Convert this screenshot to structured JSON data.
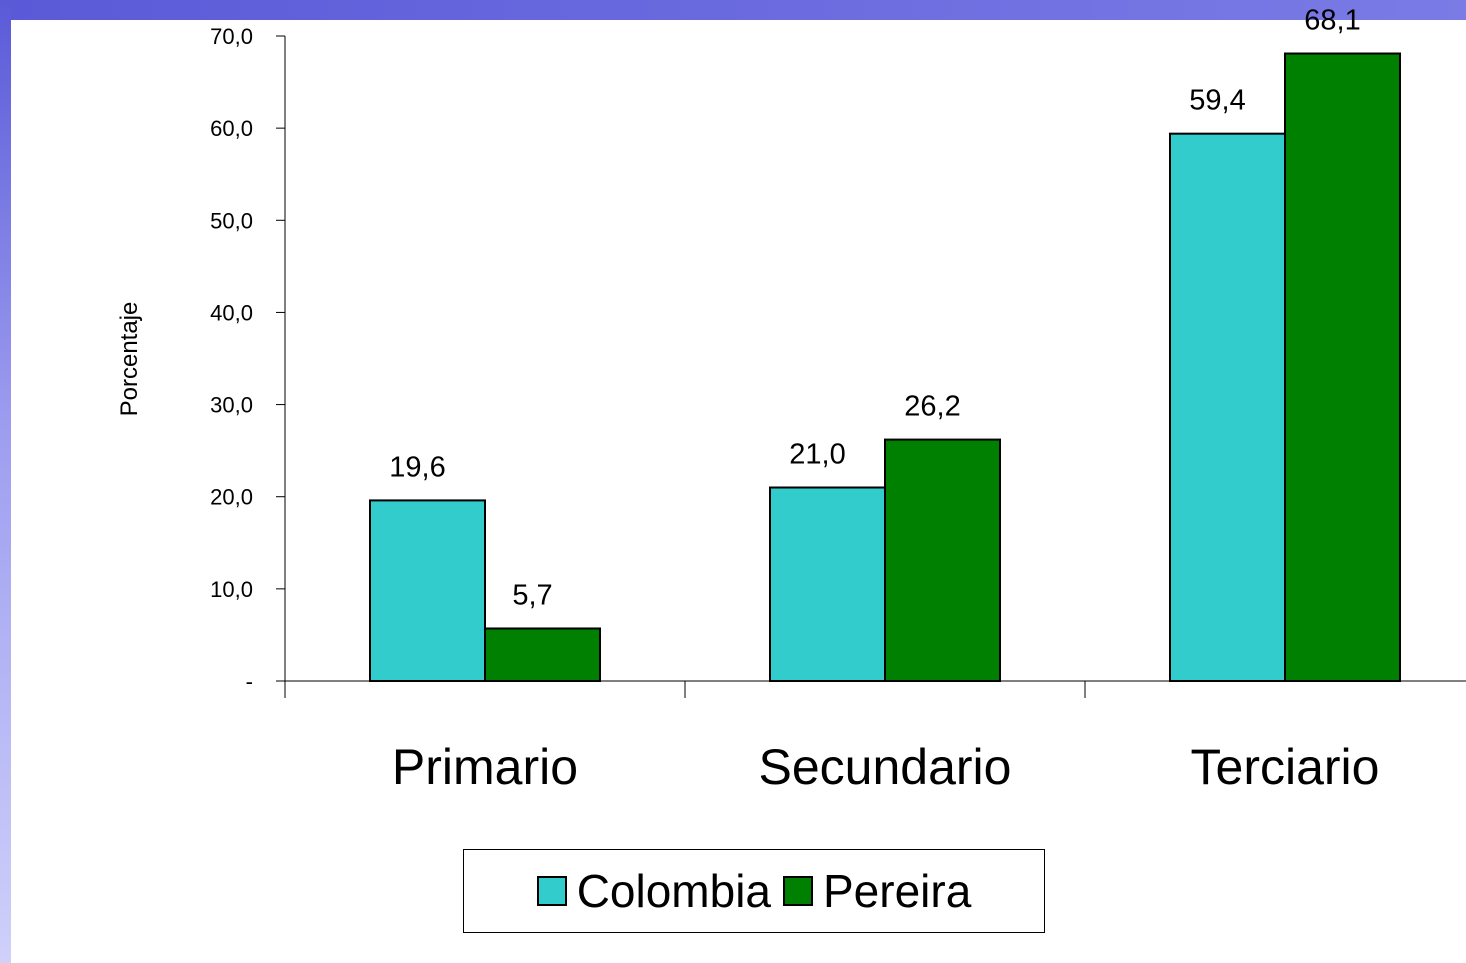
{
  "colors": {
    "colombia": "#33cccc",
    "pereira": "#008000"
  },
  "chart_data": {
    "type": "bar",
    "categories": [
      "Primario",
      "Secundario",
      "Terciario"
    ],
    "series": [
      {
        "name": "Colombia",
        "values": [
          19.6,
          21.0,
          59.4
        ],
        "labels": [
          "19,6",
          "21,0",
          "59,4"
        ]
      },
      {
        "name": "Pereira",
        "values": [
          5.7,
          26.2,
          68.1
        ],
        "labels": [
          "5,7",
          "26,2",
          "68,1"
        ]
      }
    ],
    "title": "",
    "xlabel": "",
    "ylabel": "Porcentaje",
    "ylim": [
      0,
      70
    ],
    "yticks": [
      {
        "value": 0,
        "label": "-"
      },
      {
        "value": 10,
        "label": "10,0"
      },
      {
        "value": 20,
        "label": "20,0"
      },
      {
        "value": 30,
        "label": "30,0"
      },
      {
        "value": 40,
        "label": "40,0"
      },
      {
        "value": 50,
        "label": "50,0"
      },
      {
        "value": 60,
        "label": "60,0"
      },
      {
        "value": 70,
        "label": "70,0"
      }
    ],
    "grid": false,
    "legend_position": "bottom"
  }
}
